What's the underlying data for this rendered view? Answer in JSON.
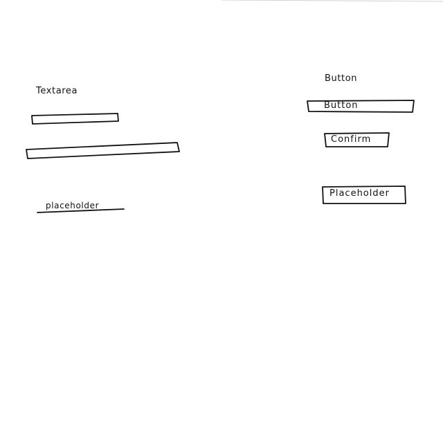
{
  "left_column": {
    "textarea_label": "Textarea",
    "placeholder_text": "placeholder"
  },
  "right_column": {
    "button_label": "Button",
    "button_text": "Button",
    "confirm_text": "Confirm",
    "placeholder_button_text": "Placeholder"
  }
}
